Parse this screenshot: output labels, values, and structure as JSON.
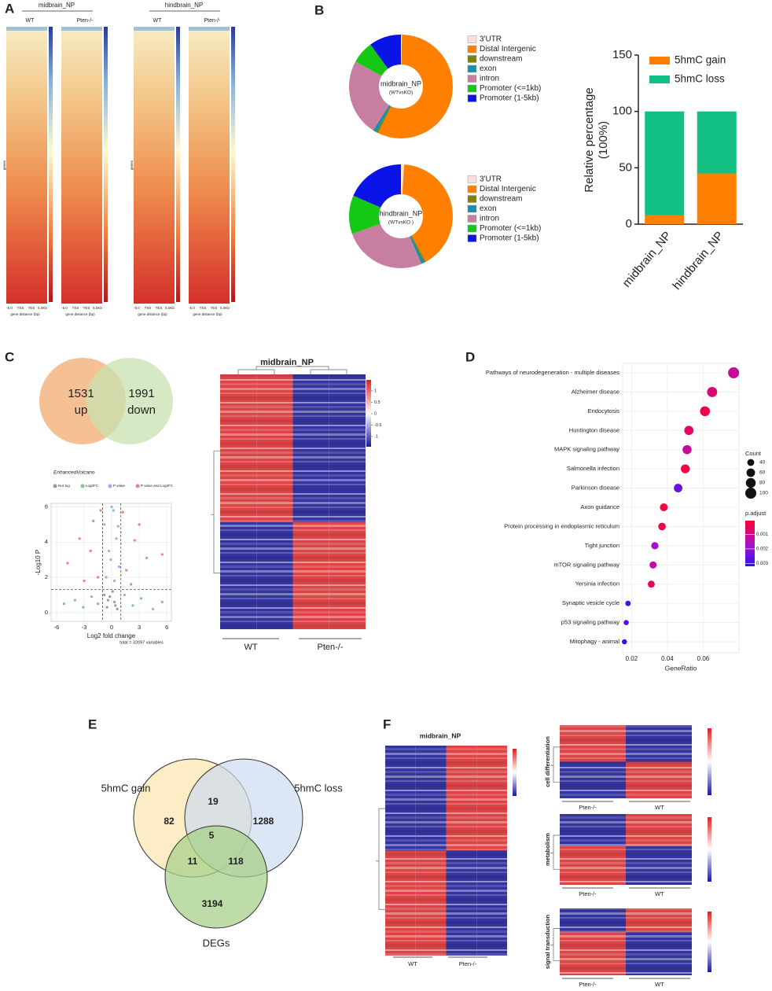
{
  "panel_labels": [
    "A",
    "B",
    "C",
    "D",
    "E",
    "F"
  ],
  "panel_a": {
    "groups": [
      {
        "title": "midbrain_NP",
        "samples": [
          "WT",
          "Pten-/-"
        ]
      },
      {
        "title": "hindbrain_NP",
        "samples": [
          "WT",
          "Pten-/-"
        ]
      }
    ],
    "x_ticks": [
      "-5.0",
      "TSS",
      "TES",
      "5.0Kb"
    ],
    "x_label": "gene distance (bp)",
    "y_label": "genes"
  },
  "chart_data": [
    {
      "type": "donut",
      "title": "midbrain_NP",
      "subtitle": "(WTvsKO)",
      "categories": [
        "3'UTR",
        "Distal Intergenic",
        "downstream",
        "exon",
        "intron",
        "Promoter (<=1kb)",
        "Promoter (1-5kb)"
      ],
      "values": [
        0.3,
        57,
        0.5,
        1.2,
        24,
        7,
        10
      ],
      "colors": [
        "#fde0dc",
        "#ff8000",
        "#808000",
        "#1a8fa6",
        "#c77ea0",
        "#14c814",
        "#0a14e6"
      ]
    },
    {
      "type": "donut",
      "title": "hindbrain_NP",
      "subtitle": "(WTvsKO )",
      "categories": [
        "3'UTR",
        "Distal Intergenic",
        "downstream",
        "exon",
        "intron",
        "Promoter (<=1kb)",
        "Promoter (1-5kb)"
      ],
      "values": [
        1,
        41,
        0.5,
        1,
        26,
        12,
        18.5
      ],
      "colors": [
        "#fde0dc",
        "#ff8000",
        "#808000",
        "#1a8fa6",
        "#c77ea0",
        "#14c814",
        "#0a14e6"
      ]
    },
    {
      "type": "stacked_bar",
      "categories": [
        "midbrain_NP",
        "hindbrain_NP"
      ],
      "series": [
        {
          "name": "5hmC gain",
          "color": "#ff8000",
          "values": [
            8,
            45
          ]
        },
        {
          "name": "5hmC loss",
          "color": "#12c083",
          "values": [
            92,
            55
          ]
        }
      ],
      "ylabel": [
        "Relative percentage",
        "(100%)"
      ],
      "ylim": [
        0,
        150
      ],
      "yticks": [
        0,
        50,
        100,
        150
      ],
      "legend": "upper left"
    },
    {
      "type": "volcano",
      "title": "EnhancedVolcano",
      "xlabel": "Log2 fold change",
      "ylabel": "-Log10 P",
      "caption": "total = 32097 variables",
      "xlim": [
        -6.6,
        6.5
      ],
      "ylim": [
        -0.5,
        6.2
      ],
      "xticks": [
        -6,
        -3,
        0,
        3,
        6
      ],
      "yticks": [
        0,
        2,
        4,
        6
      ],
      "thresholds": {
        "x": [
          -1,
          1
        ],
        "y": 1.3
      },
      "grid": true,
      "series": [
        {
          "name": "Not Sig",
          "color": "#9a9a9a",
          "x": [
            -0.5,
            0.3,
            -0.2,
            0.6,
            -0.8,
            0.1,
            0.4,
            -0.4
          ],
          "values": [
            0.3,
            0.6,
            0.9,
            0.2,
            1.0,
            1.2,
            0.4,
            0.7
          ]
        },
        {
          "name": "Log2FC",
          "color": "#7fc97f",
          "x": [
            -1.5,
            -2.2,
            -3.1,
            -4,
            1.4,
            2.3,
            3.2,
            4.5,
            -5.2,
            5.5
          ],
          "values": [
            0.5,
            0.9,
            0.3,
            0.7,
            1.0,
            0.4,
            0.8,
            0.2,
            0.5,
            0.6
          ]
        },
        {
          "name": "P value",
          "color": "#9eaaf0",
          "x": [
            -0.6,
            -0.3,
            0.2,
            0.5,
            0.8,
            -0.8,
            0,
            0.3,
            -0.1,
            0.7
          ],
          "values": [
            2,
            3.5,
            5.8,
            4.2,
            2.6,
            5,
            6,
            1.8,
            3,
            4.9
          ]
        },
        {
          "name": "P value and Log2FC",
          "color": "#f08080",
          "x": [
            -1.5,
            -2.3,
            -3.5,
            -4.8,
            -1.2,
            -2,
            1.6,
            2.5,
            3.8,
            5.5,
            1.2,
            2.1,
            -3,
            3
          ],
          "values": [
            2,
            3.5,
            4.2,
            2.8,
            5.8,
            5.2,
            2.4,
            4.1,
            3.1,
            3.3,
            5.7,
            1.6,
            1.8,
            5
          ]
        }
      ]
    },
    {
      "type": "dot",
      "xlabel": "GeneRatio",
      "categories": [
        "Pathways of neurodegeneration - multiple diseases",
        "Alzheimer disease",
        "Endocytosis",
        "Huntington disease",
        "MAPK signaling pathway",
        "Salmonella infection",
        "Parkinson disease",
        "Axon guidance",
        "Protein processing in endoplasmic reticulum",
        "Tight junction",
        "mTOR signaling pathway",
        "Yersinia infection",
        "Synaptic vesicle cycle",
        "p53 signaling pathway",
        "Mitophagy - animal"
      ],
      "x": [
        0.077,
        0.065,
        0.061,
        0.052,
        0.051,
        0.05,
        0.046,
        0.038,
        0.037,
        0.033,
        0.032,
        0.031,
        0.018,
        0.017,
        0.016
      ],
      "sizes": [
        100,
        85,
        80,
        70,
        68,
        65,
        60,
        50,
        48,
        44,
        42,
        40,
        24,
        22,
        21
      ],
      "p_adjust": [
        0.0012,
        0.0008,
        0.0003,
        0.0006,
        0.0012,
        0.0003,
        0.0025,
        0.0003,
        0.0003,
        0.0018,
        0.0012,
        0.0005,
        0.003,
        0.0028,
        0.0032
      ],
      "xlim": [
        0.015,
        0.08
      ],
      "xticks": [
        0.02,
        0.04,
        0.06
      ],
      "size_legend": {
        "title": "Count",
        "values": [
          40,
          60,
          80,
          100
        ]
      },
      "color_legend": {
        "title": "p.adjust",
        "lim": [
          5e-05,
          0.0032
        ],
        "ticks": [
          0.001,
          0.002,
          0.003
        ]
      },
      "grid": true
    }
  ],
  "venn_c": {
    "sets": [
      {
        "count": "1531",
        "label": "up"
      },
      {
        "count": "1991",
        "label": "down"
      }
    ]
  },
  "heatmap_c": {
    "title": "midbrain_NP",
    "colorbar_lim": [
      -1.45,
      1.48
    ],
    "colorbar_ticks": [
      1,
      0.5,
      0,
      -0.5,
      -1
    ],
    "columns": [
      "WT",
      "Pten-/-"
    ]
  },
  "venn_e": {
    "sets": [
      "5hmC gain",
      "5hmC loss",
      "DEGs"
    ],
    "regions": {
      "gain_only": "82",
      "gain_loss": "19",
      "loss_only": "1288",
      "all": "5",
      "gain_degs": "11",
      "loss_degs": "118",
      "degs_only": "3194"
    }
  },
  "panel_f": {
    "main": {
      "title": "midbrain_NP",
      "columns": [
        "WT",
        "Pten-/-"
      ]
    },
    "subsets": [
      {
        "title": "cell differentiation",
        "columns": [
          "Pten-/-",
          "WT"
        ]
      },
      {
        "title": "metabolism",
        "columns": [
          "Pten-/-",
          "WT"
        ]
      },
      {
        "title": "signal transduction",
        "columns": [
          "Pten-/-",
          "WT"
        ]
      }
    ]
  }
}
